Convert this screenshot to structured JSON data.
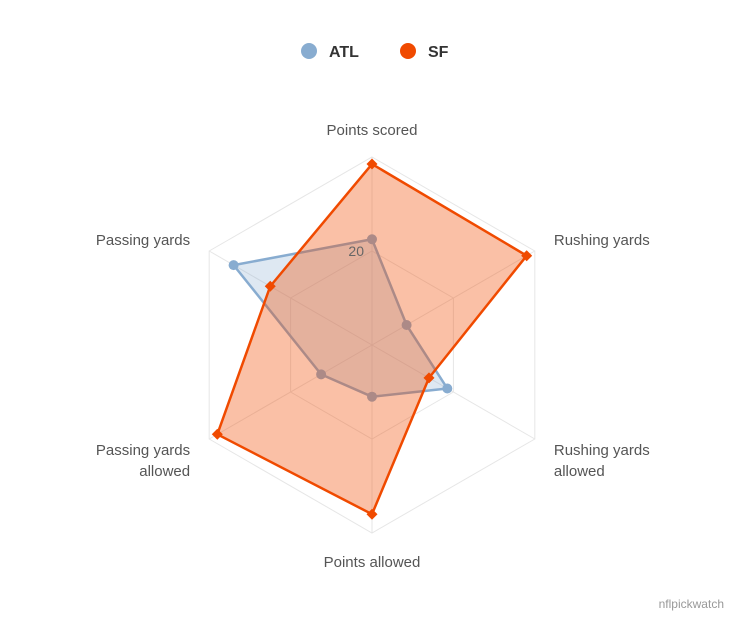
{
  "chart_data": {
    "type": "radar",
    "title": "",
    "categories": [
      "Points scored",
      "Rushing yards",
      "Rushing yards allowed",
      "Points allowed",
      "Passing yards allowed",
      "Passing yards"
    ],
    "category_lines": [
      [
        "Points scored"
      ],
      [
        "Rushing yards"
      ],
      [
        "Rushing yards",
        "allowed"
      ],
      [
        "Points allowed"
      ],
      [
        "Passing yards",
        "allowed"
      ],
      [
        "Passing yards"
      ]
    ],
    "radial_max": 40,
    "radial_tick_interval": 20,
    "tick_labels": [
      "20"
    ],
    "grid": true,
    "legend_position": "top-center",
    "series": [
      {
        "name": "ATL",
        "color": "#88acd0",
        "marker": "circle",
        "values": [
          22.5,
          8.5,
          18.5,
          11,
          12.5,
          34
        ]
      },
      {
        "name": "SF",
        "color": "#f04a00",
        "marker": "diamond",
        "values": [
          38.5,
          38,
          14,
          36,
          38,
          25
        ]
      }
    ]
  },
  "credit": "nflpickwatch"
}
